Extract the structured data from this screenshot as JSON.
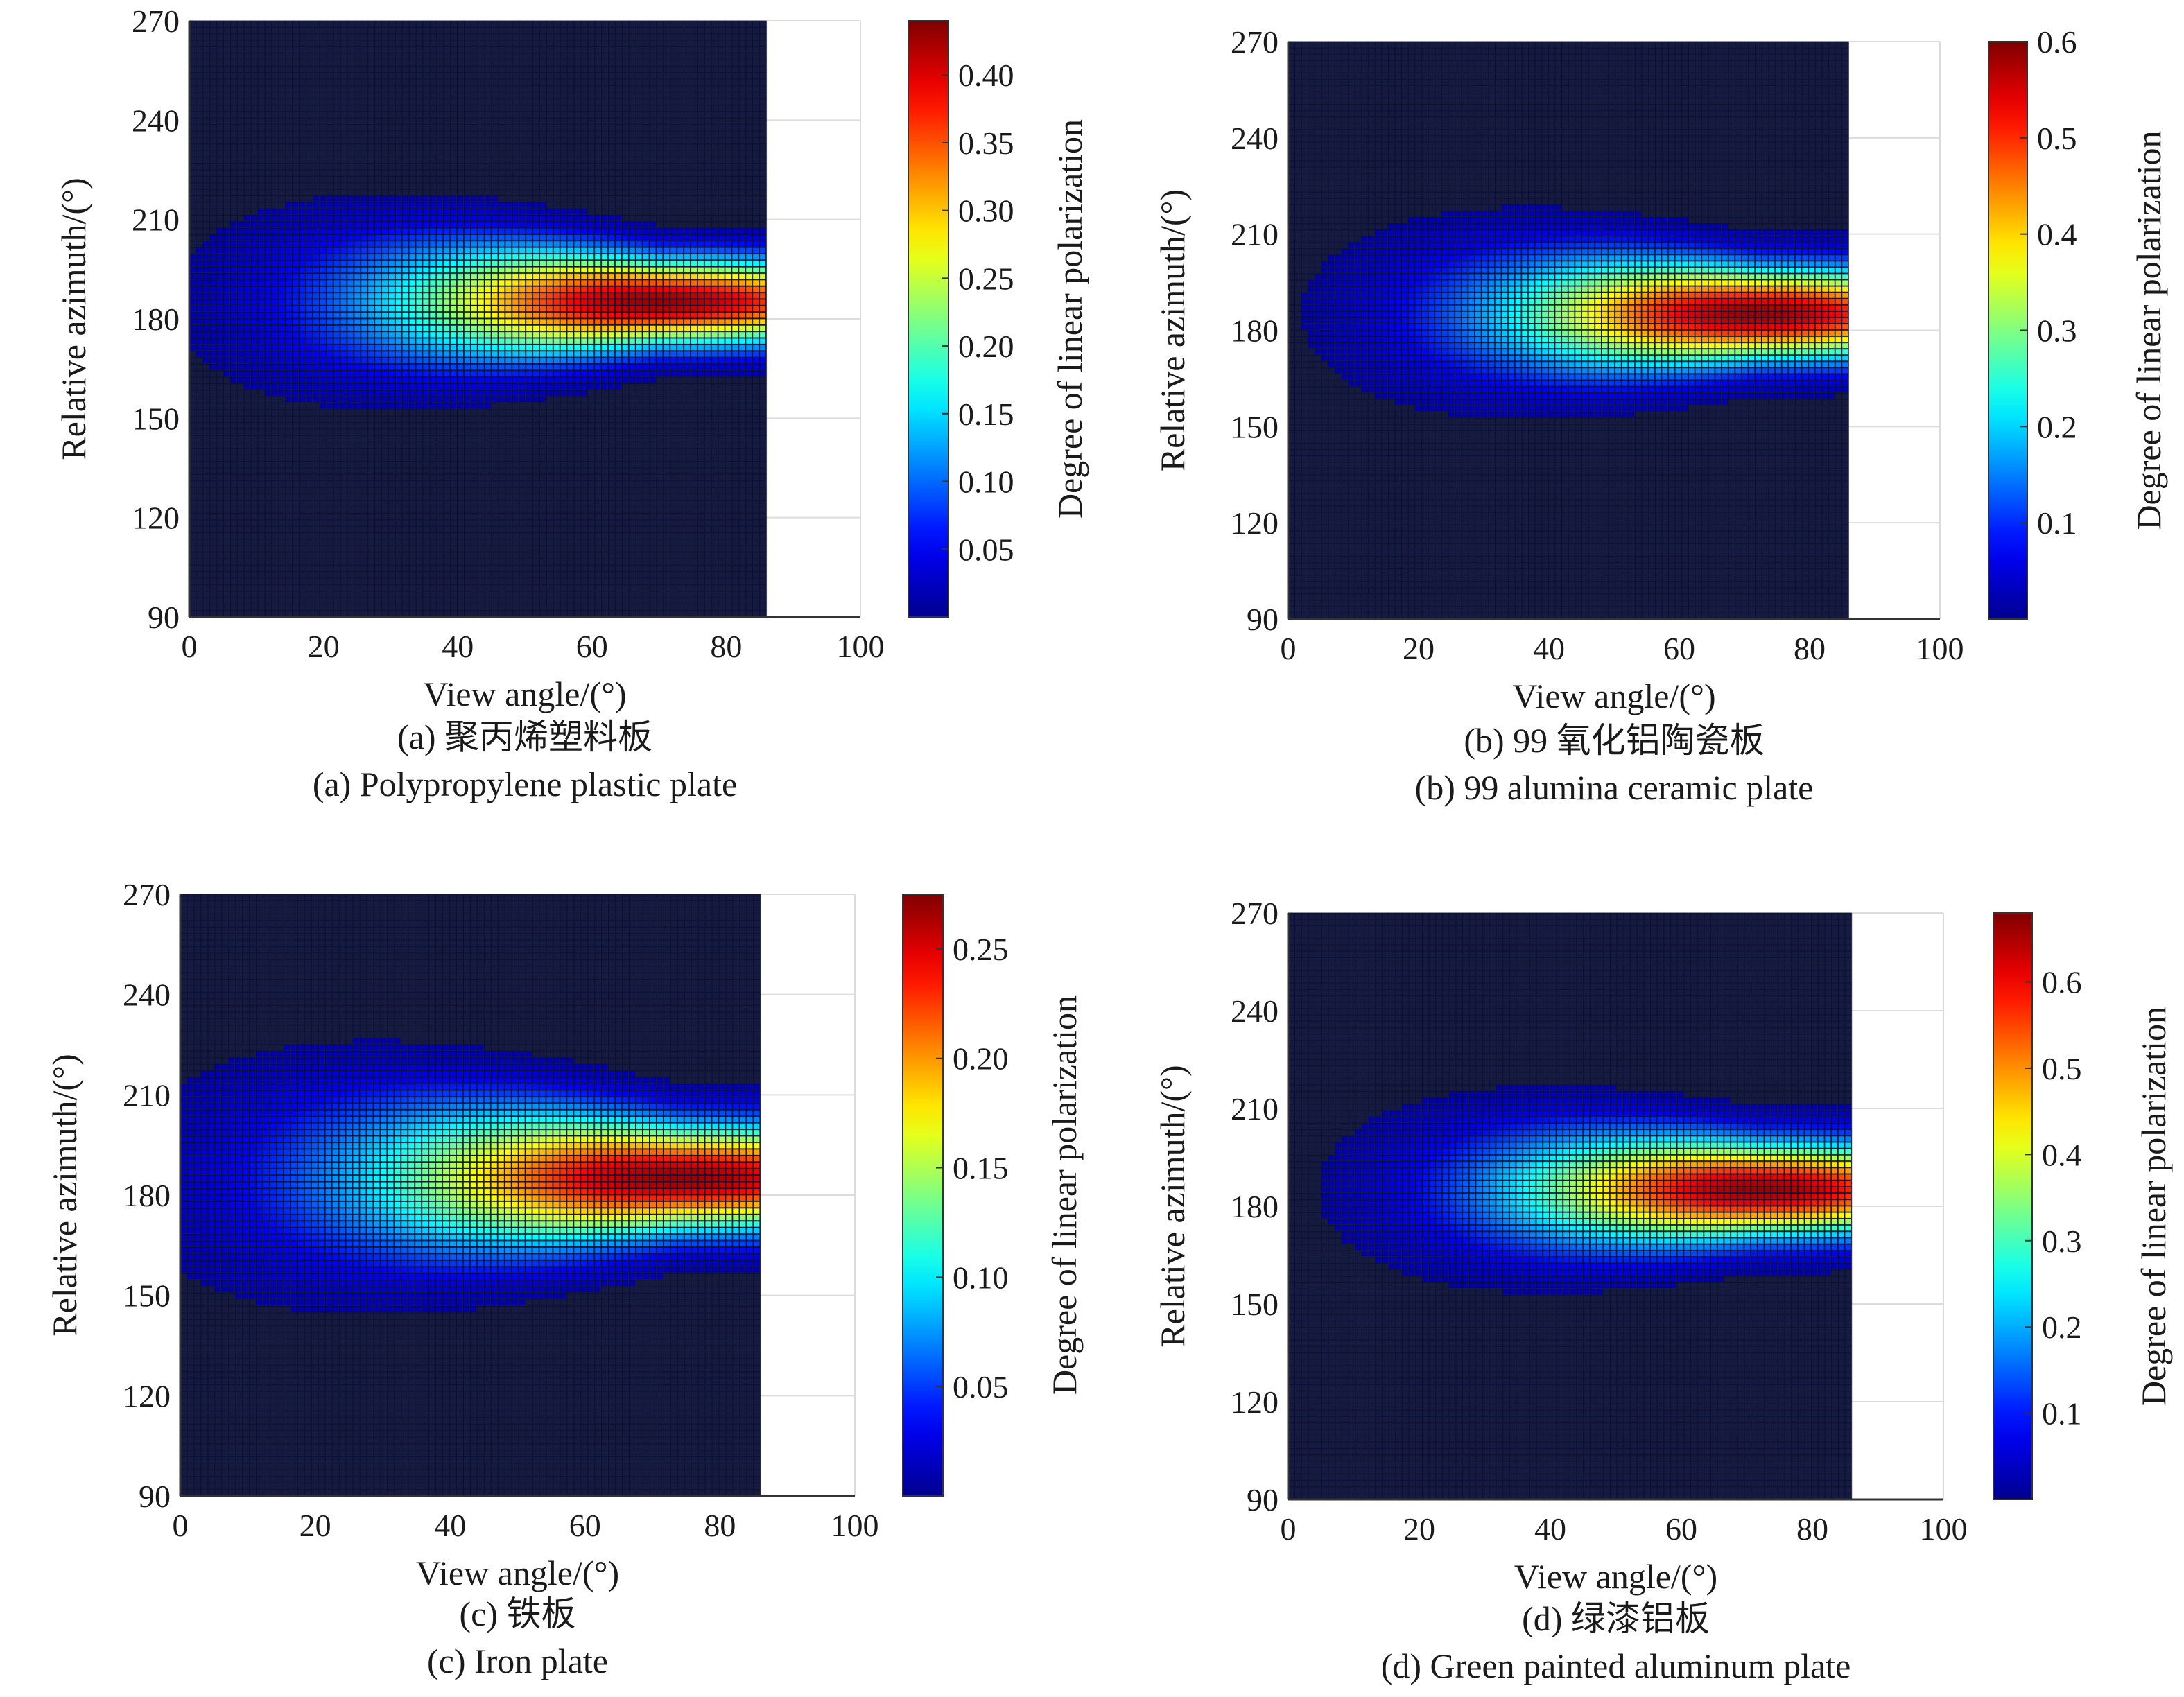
{
  "colors": {
    "background": "#ffffff",
    "grid": "#dcdcdc",
    "axis": "#333333",
    "plot_floor": "#141a40",
    "colormap": [
      "#00008f",
      "#0000ff",
      "#00ffff",
      "#ffff00",
      "#ff0000",
      "#800000"
    ]
  },
  "chart_data": [
    {
      "type": "heatmap",
      "panel": "a",
      "caption_cn": "(a) 聚丙烯塑料板",
      "caption_en": "(a) Polypropylene plastic plate",
      "xlabel": "View angle/(°)",
      "ylabel": "Relative azimuth/(°)",
      "xlim": [
        0,
        100
      ],
      "ylim": [
        90,
        270
      ],
      "x_ticks": [
        0,
        20,
        40,
        60,
        80,
        100
      ],
      "y_ticks": [
        90,
        120,
        150,
        180,
        210,
        240,
        270
      ],
      "data_x_range": [
        0,
        86
      ],
      "colorbar_label": "Degree of linear polarization",
      "color_range": [
        0.0,
        0.44
      ],
      "colorbar_ticks": [
        "0.05",
        "0.10",
        "0.15",
        "0.20",
        "0.25",
        "0.30",
        "0.35",
        "0.40"
      ],
      "peak": {
        "view_angle": 70,
        "azimuth": 185,
        "value": 0.44
      },
      "spread": {
        "view_angle_sigma": 28,
        "azimuth_sigma_near": 9,
        "azimuth_sigma_far": 20
      }
    },
    {
      "type": "heatmap",
      "panel": "b",
      "caption_cn": "(b) 99 氧化铝陶瓷板",
      "caption_en": "(b) 99 alumina ceramic plate",
      "xlabel": "View angle/(°)",
      "ylabel": "Relative azimuth/(°)",
      "xlim": [
        0,
        100
      ],
      "ylim": [
        90,
        270
      ],
      "x_ticks": [
        0,
        20,
        40,
        60,
        80,
        100
      ],
      "y_ticks": [
        90,
        120,
        150,
        180,
        210,
        240,
        270
      ],
      "data_x_range": [
        0,
        86
      ],
      "colorbar_label": "Degree of linear polarization",
      "color_range": [
        0.0,
        0.6
      ],
      "colorbar_ticks": [
        "0.1",
        "0.2",
        "0.3",
        "0.4",
        "0.5",
        "0.6"
      ],
      "peak": {
        "view_angle": 72,
        "azimuth": 185,
        "value": 0.6
      },
      "spread": {
        "view_angle_sigma": 27,
        "azimuth_sigma_near": 10,
        "azimuth_sigma_far": 20
      }
    },
    {
      "type": "heatmap",
      "panel": "c",
      "caption_cn": "(c) 铁板",
      "caption_en": "(c) Iron plate",
      "xlabel": "View angle/(°)",
      "ylabel": "Relative azimuth/(°)",
      "xlim": [
        0,
        100
      ],
      "ylim": [
        90,
        270
      ],
      "x_ticks": [
        0,
        20,
        40,
        60,
        80,
        100
      ],
      "y_ticks": [
        90,
        120,
        150,
        180,
        210,
        240,
        270
      ],
      "data_x_range": [
        0,
        86
      ],
      "colorbar_label": "Degree of linear polarization",
      "color_range": [
        0.0,
        0.275
      ],
      "colorbar_ticks": [
        "0.05",
        "0.10",
        "0.15",
        "0.20",
        "0.25"
      ],
      "peak": {
        "view_angle": 74,
        "azimuth": 185,
        "value": 0.275
      },
      "spread": {
        "view_angle_sigma": 32,
        "azimuth_sigma_near": 11,
        "azimuth_sigma_far": 24
      }
    },
    {
      "type": "heatmap",
      "panel": "d",
      "caption_cn": "(d) 绿漆铝板",
      "caption_en": "(d) Green painted aluminum plate",
      "xlabel": "View angle/(°)",
      "ylabel": "Relative azimuth/(°)",
      "xlim": [
        0,
        100
      ],
      "ylim": [
        90,
        270
      ],
      "x_ticks": [
        0,
        20,
        40,
        60,
        80,
        100
      ],
      "y_ticks": [
        90,
        120,
        150,
        180,
        210,
        240,
        270
      ],
      "data_x_range": [
        0,
        86
      ],
      "colorbar_label": "Degree of linear polarization",
      "color_range": [
        0.0,
        0.68
      ],
      "colorbar_ticks": [
        "0.1",
        "0.2",
        "0.3",
        "0.4",
        "0.5",
        "0.6"
      ],
      "peak": {
        "view_angle": 72,
        "azimuth": 185,
        "value": 0.68
      },
      "spread": {
        "view_angle_sigma": 26,
        "azimuth_sigma_near": 10,
        "azimuth_sigma_far": 19
      }
    }
  ]
}
